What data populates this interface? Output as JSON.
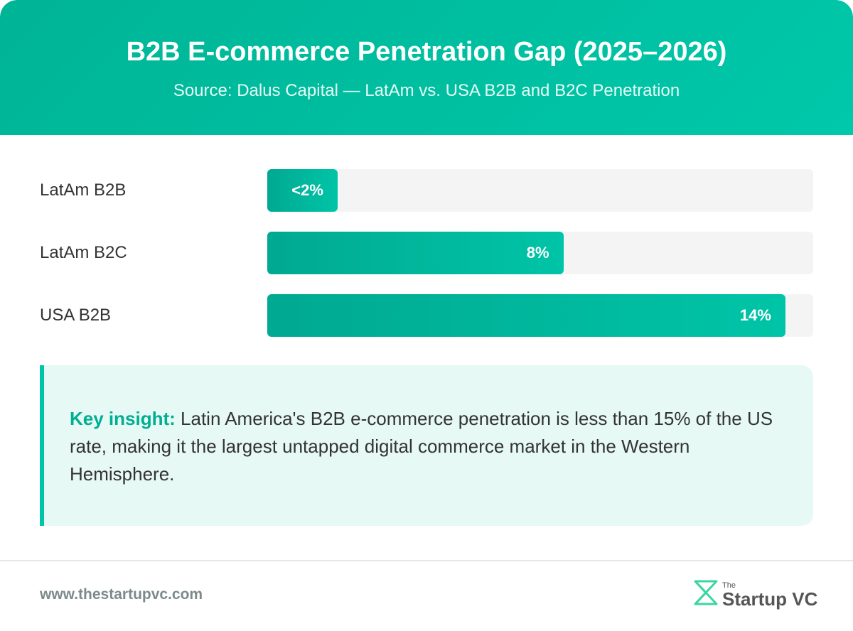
{
  "chart_data": {
    "type": "bar",
    "title": "B2B E-commerce Penetration Gap (2025–2026)",
    "subtitle": "Source: Dalus Capital — LatAm vs. USA B2B and B2C Penetration",
    "categories": [
      "LatAm B2B",
      "LatAm B2C",
      "USA B2B"
    ],
    "values": [
      1.9,
      8,
      14
    ],
    "value_labels": [
      "<2%",
      "8%",
      "14%"
    ],
    "xlim": [
      0,
      14.75
    ],
    "color": "#00c4a7"
  },
  "insight": {
    "label": "Key insight:",
    "text": "Latin America's B2B e-commerce penetration is less than 15% of the US rate, making it the largest untapped digital commerce market in the Western Hemisphere."
  },
  "footer": {
    "url": "www.thestartupvc.com",
    "logo_small": "The",
    "logo_name": "Startup VC"
  }
}
